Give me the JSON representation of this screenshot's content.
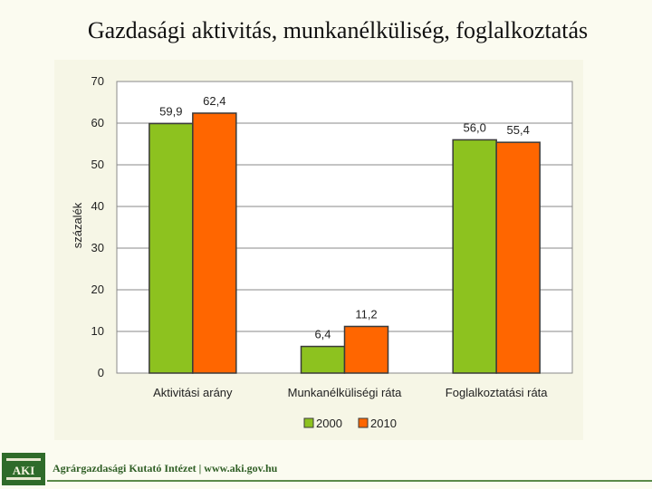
{
  "slide": {
    "title": "Gazdasági aktivitás, munkanélküliség, foglalkoztatás"
  },
  "chart_data": {
    "type": "bar",
    "ylabel": "százalék",
    "ylim": [
      0,
      70
    ],
    "yticks": [
      0,
      10,
      20,
      30,
      40,
      50,
      60,
      70
    ],
    "categories": [
      "Aktivitási arány",
      "Munkanélküliségi ráta",
      "Foglalkoztatási ráta"
    ],
    "series": [
      {
        "name": "2000",
        "values": [
          59.9,
          6.4,
          56.0
        ],
        "labels": [
          "59,9",
          "6,4",
          "56,0"
        ],
        "color": "#8dc21f"
      },
      {
        "name": "2010",
        "values": [
          62.4,
          11.2,
          55.4
        ],
        "labels": [
          "62,4",
          "11,2",
          "55,4"
        ],
        "color": "#ff6600"
      }
    ],
    "grid": true,
    "legend": "bottom"
  },
  "footer": {
    "logo_text": "AKI",
    "text": "Agrárgazdasági Kutató Intézet | www.aki.gov.hu"
  }
}
